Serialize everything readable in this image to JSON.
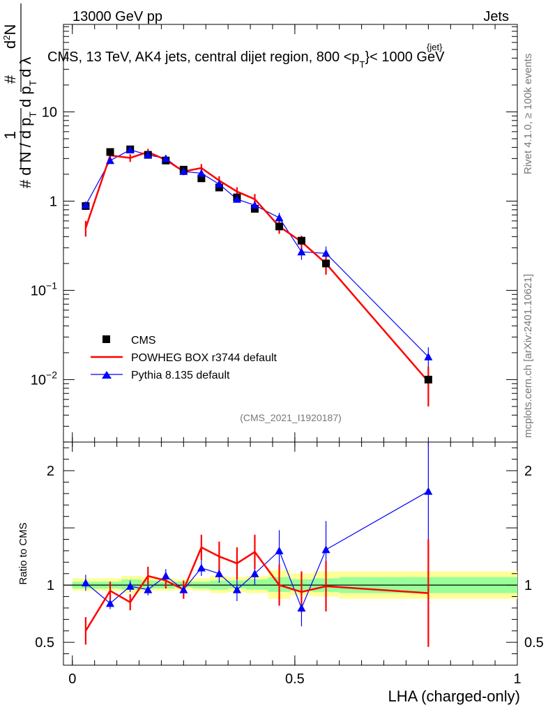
{
  "header": {
    "left": "13000 GeV pp",
    "right": "Jets"
  },
  "side": {
    "rivet": "Rivet 4.1.0, ≥ 100k events",
    "mcplots": "mcplots.cern.ch [arXiv:2401.10621]"
  },
  "chart_data": {
    "type": "line",
    "title_main": "CMS, 13 TeV, AK4 jets, central dijet region, 800 <p",
    "title_sup": "{jet}",
    "title_sub": "T",
    "title_end": "}< 1000 GeV",
    "analysis_id": "(CMS_2021_I1920187)",
    "xlabel": "LHA (charged-only)",
    "ylabel_top": "1/N dN/dp_T d^2N/dp_T dλ",
    "ylabel_ratio": "Ratio to CMS",
    "xlim": [
      -0.02,
      1.0
    ],
    "ylim_main_log10": [
      -2.7,
      1.98
    ],
    "ylim_ratio": [
      0.3,
      2.25
    ],
    "x_ticks": [
      {
        "v": 0,
        "label": "0"
      },
      {
        "v": 0.5,
        "label": "0.5"
      },
      {
        "v": 1,
        "label": "1"
      }
    ],
    "y_ticks_main": [
      {
        "v": 10,
        "base": "10",
        "exp": ""
      },
      {
        "v": 1,
        "base": "1",
        "exp": ""
      },
      {
        "v": 0.1,
        "base": "10",
        "exp": "−1"
      },
      {
        "v": 0.01,
        "base": "10",
        "exp": "−2"
      }
    ],
    "y_ticks_ratio": [
      {
        "v": 2,
        "label": "2"
      },
      {
        "v": 1,
        "label": "1"
      },
      {
        "v": 0.5,
        "label": "0.5"
      }
    ],
    "bin_edges": [
      0.0,
      0.06,
      0.11,
      0.155,
      0.19,
      0.23,
      0.27,
      0.31,
      0.35,
      0.39,
      0.44,
      0.49,
      0.54,
      0.6,
      1.0
    ],
    "x": [
      0.03,
      0.085,
      0.13,
      0.17,
      0.21,
      0.25,
      0.29,
      0.33,
      0.37,
      0.41,
      0.465,
      0.515,
      0.57,
      0.8
    ],
    "band_yellow": [
      [
        0.95,
        1.06
      ],
      [
        0.95,
        1.06
      ],
      [
        0.93,
        1.08
      ],
      [
        0.95,
        1.07
      ],
      [
        0.95,
        1.06
      ],
      [
        0.96,
        1.05
      ],
      [
        0.95,
        1.06
      ],
      [
        0.93,
        1.08
      ],
      [
        0.94,
        1.07
      ],
      [
        0.93,
        1.08
      ],
      [
        0.88,
        1.13
      ],
      [
        0.91,
        1.1
      ],
      [
        0.9,
        1.12
      ],
      [
        0.88,
        1.12
      ]
    ],
    "band_green": [
      [
        0.97,
        1.03
      ],
      [
        0.97,
        1.03
      ],
      [
        0.96,
        1.05
      ],
      [
        0.97,
        1.04
      ],
      [
        0.97,
        1.03
      ],
      [
        0.98,
        1.03
      ],
      [
        0.97,
        1.03
      ],
      [
        0.96,
        1.04
      ],
      [
        0.97,
        1.04
      ],
      [
        0.96,
        1.05
      ],
      [
        0.94,
        1.07
      ],
      [
        0.95,
        1.05
      ],
      [
        0.94,
        1.06
      ],
      [
        0.93,
        1.07
      ]
    ],
    "series": [
      {
        "name": "CMS",
        "color": "#000000",
        "marker": "square",
        "values": [
          0.88,
          3.55,
          3.8,
          3.3,
          2.85,
          2.25,
          1.8,
          1.42,
          1.1,
          0.82,
          0.52,
          0.36,
          0.2,
          0.01
        ],
        "ratio": [
          1,
          1,
          1,
          1,
          1,
          1,
          1,
          1,
          1,
          1,
          1,
          1,
          1,
          1
        ]
      },
      {
        "name": "POWHEG BOX r3744 default",
        "color": "#ff0000",
        "marker": "line",
        "values": [
          0.5,
          3.25,
          3.05,
          3.55,
          2.9,
          2.15,
          2.35,
          1.7,
          1.28,
          1.05,
          0.52,
          0.35,
          0.2,
          0.0095
        ],
        "err": [
          0.1,
          0.25,
          0.3,
          0.3,
          0.2,
          0.2,
          0.25,
          0.2,
          0.15,
          0.15,
          0.09,
          0.06,
          0.05,
          0.0045
        ],
        "ratio": [
          0.6,
          0.95,
          0.85,
          1.08,
          1.04,
          0.96,
          1.33,
          1.25,
          1.19,
          1.29,
          1.0,
          0.94,
          0.99,
          0.93
        ],
        "ratio_err": [
          0.12,
          0.08,
          0.07,
          0.08,
          0.07,
          0.08,
          0.11,
          0.13,
          0.14,
          0.15,
          0.18,
          0.18,
          0.22,
          0.47
        ]
      },
      {
        "name": "Pythia 8.135 default",
        "color": "#0000ff",
        "marker": "triangle",
        "values": [
          0.9,
          2.85,
          3.75,
          3.3,
          3.0,
          2.15,
          2.05,
          1.55,
          1.05,
          0.9,
          0.65,
          0.27,
          0.26,
          0.018
        ],
        "err": [
          0.07,
          0.12,
          0.15,
          0.12,
          0.12,
          0.1,
          0.1,
          0.1,
          0.09,
          0.07,
          0.09,
          0.05,
          0.05,
          0.005
        ],
        "ratio": [
          1.02,
          0.84,
          0.99,
          0.96,
          1.08,
          0.96,
          1.15,
          1.1,
          0.96,
          1.1,
          1.3,
          0.8,
          1.31,
          1.82
        ],
        "ratio_err": [
          0.07,
          0.05,
          0.05,
          0.05,
          0.06,
          0.06,
          0.07,
          0.08,
          0.1,
          0.1,
          0.18,
          0.16,
          0.25,
          0.46
        ]
      }
    ]
  }
}
